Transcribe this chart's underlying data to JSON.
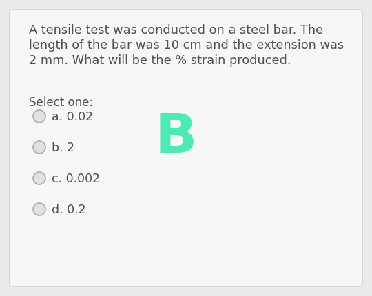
{
  "bg_color": "#ebebeb",
  "card_color": "#f7f7f7",
  "question_text_lines": [
    "A tensile test was conducted on a steel bar. The",
    "length of the bar was 10 cm and the extension was",
    "2 mm. What will be the % strain produced."
  ],
  "select_label": "Select one:",
  "options": [
    {
      "label": "a. 0.02"
    },
    {
      "label": "b. 2"
    },
    {
      "label": "c. 0.002"
    },
    {
      "label": "d. 0.2"
    }
  ],
  "correct_letter": "B",
  "correct_color": "#4debb4",
  "question_fontsize": 12.8,
  "option_fontsize": 12.5,
  "select_fontsize": 12.0,
  "correct_fontsize": 58,
  "text_color": "#505050",
  "card_border_color": "#cccccc",
  "radio_edge_color": "#b0b0b0",
  "radio_face_color": "#e2e2e2"
}
